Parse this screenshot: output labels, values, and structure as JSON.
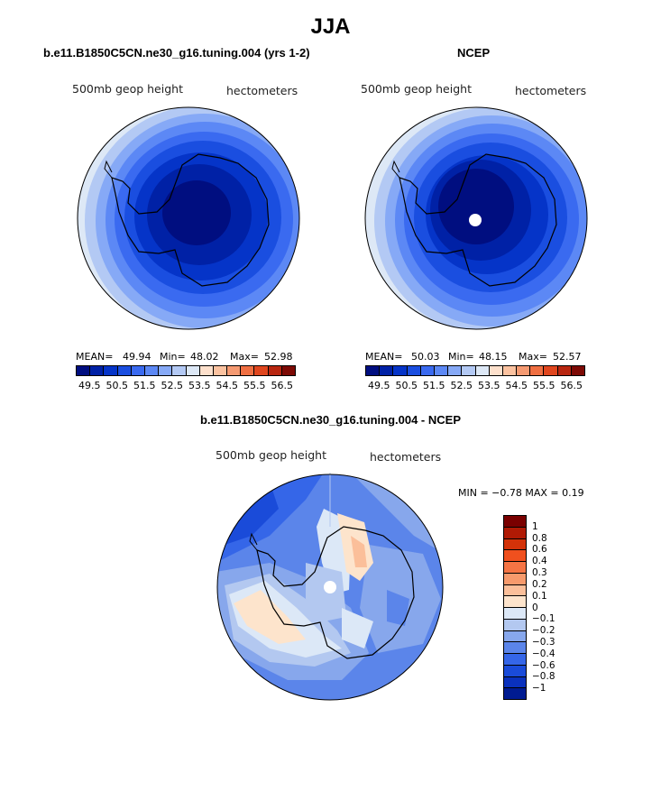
{
  "title": "JJA",
  "panels": [
    {
      "title": "b.e11.B1850C5CN.ne30_g16.tuning.004 (yrs 1-2)",
      "field_label": "500mb geop height",
      "units": "hectometers",
      "stats": {
        "mean_label": "MEAN=",
        "mean": "49.94",
        "min_label": "Min=",
        "min": "48.02",
        "max_label": "Max=",
        "max": "52.98"
      }
    },
    {
      "title": "NCEP",
      "field_label": "500mb geop height",
      "units": "hectometers",
      "stats": {
        "mean_label": "MEAN=",
        "mean": "50.03",
        "min_label": "Min=",
        "min": "48.15",
        "max_label": "Max=",
        "max": "52.57"
      }
    }
  ],
  "colorbar_top": {
    "colors": [
      "#000e80",
      "#0021a6",
      "#0534c8",
      "#1a4ee0",
      "#3a6af0",
      "#5c88f5",
      "#86a9f6",
      "#b3c9f4",
      "#dde8f6",
      "#fde0cc",
      "#fbc2a0",
      "#f59a72",
      "#ef6f42",
      "#e0461e",
      "#b82610",
      "#7d0a05"
    ],
    "labels": [
      "49.5",
      "50.5",
      "51.5",
      "52.5",
      "53.5",
      "54.5",
      "55.5",
      "56.5"
    ]
  },
  "diff_panel": {
    "title": "b.e11.B1850C5CN.ne30_g16.tuning.004 - NCEP",
    "field_label": "500mb geop height",
    "units": "hectometers",
    "stats_text": "MIN =  −0.78 MAX =   0.19"
  },
  "colorbar_diff": {
    "colors": [
      "#7a0000",
      "#b01a05",
      "#d33209",
      "#f0501e",
      "#f57444",
      "#f79a6c",
      "#fbbf9a",
      "#fde4cc",
      "#dce8f7",
      "#b3c8f0",
      "#87a7ec",
      "#5b85ea",
      "#3566e8",
      "#1a4bd9",
      "#0a31bd",
      "#001b91"
    ],
    "labels": [
      "1",
      "0.8",
      "0.6",
      "0.4",
      "0.3",
      "0.2",
      "0.1",
      "0",
      "−0.1",
      "−0.2",
      "−0.3",
      "−0.4",
      "−0.6",
      "−0.8",
      "−1"
    ]
  }
}
